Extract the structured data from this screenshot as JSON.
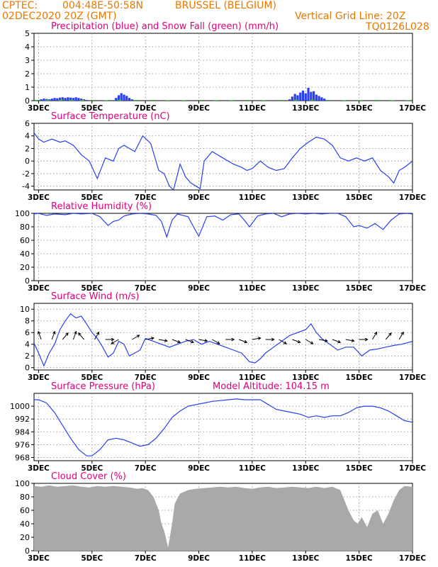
{
  "header": {
    "source": "CPTEC:",
    "coords": "004:48E-50:58N",
    "location": "BRUSSEL (BELGIUM)",
    "init": "02DEC2020 20Z (GMT)",
    "grid_note": "Vertical Grid Line: 20Z",
    "code": "TQ0126L028"
  },
  "colors": {
    "header_text": "#e87800",
    "panel_title": "#e0007a",
    "line": "#2a3ff0",
    "snow": "#22c322",
    "cloud_fill": "#a9a9a9",
    "grid": "#888888"
  },
  "x_axis": {
    "tick_labels": [
      "3DEC",
      "5DEC",
      "7DEC",
      "9DEC",
      "11DEC",
      "13DEC",
      "15DEC",
      "17DEC"
    ],
    "range_days": [
      2.83,
      17.0
    ]
  },
  "chart_data": [
    {
      "id": "precip",
      "type": "bar",
      "title": "Precipitation (blue) and Snow Fall (green) (mm/h)",
      "ylim": [
        0,
        5
      ],
      "yticks": [
        "0",
        "1",
        "2",
        "3",
        "4",
        "5"
      ],
      "series": [
        {
          "name": "Precipitation",
          "x": [
            3.0,
            3.1,
            3.2,
            3.3,
            3.4,
            3.5,
            3.6,
            3.7,
            3.8,
            3.9,
            4.0,
            4.1,
            4.2,
            4.3,
            4.4,
            4.5,
            4.6,
            4.7,
            4.8,
            5.9,
            6.0,
            6.1,
            6.2,
            6.3,
            6.4,
            6.5,
            12.4,
            12.5,
            12.6,
            12.7,
            12.8,
            12.9,
            13.0,
            13.1,
            13.2,
            13.3,
            13.4,
            13.5,
            13.6,
            13.7,
            13.8
          ],
          "values": [
            0.05,
            0.1,
            0.15,
            0.12,
            0.1,
            0.15,
            0.2,
            0.18,
            0.22,
            0.25,
            0.2,
            0.25,
            0.22,
            0.2,
            0.25,
            0.2,
            0.15,
            0.1,
            0.05,
            0.2,
            0.4,
            0.55,
            0.45,
            0.35,
            0.2,
            0.1,
            0.1,
            0.3,
            0.5,
            0.4,
            0.6,
            0.75,
            0.55,
            0.95,
            0.65,
            0.7,
            0.45,
            0.35,
            0.25,
            0.15,
            0.05
          ]
        },
        {
          "name": "Snow Fall",
          "x": [
            2.9,
            3.3,
            3.8,
            4.2,
            4.6,
            5.0,
            5.5,
            6.0,
            6.6,
            7.2,
            7.8,
            8.4,
            9.0,
            9.6,
            10.2,
            10.8,
            11.4,
            12.0,
            12.6,
            13.2,
            13.8,
            14.4,
            15.0,
            15.6,
            16.2,
            16.8
          ],
          "values": [
            0.05,
            0.05,
            0.06,
            0.06,
            0.05,
            0.05,
            0.04,
            0.06,
            0.05,
            0.05,
            0.04,
            0.04,
            0.05,
            0.04,
            0.04,
            0.05,
            0.04,
            0.05,
            0.06,
            0.05,
            0.05,
            0.04,
            0.04,
            0.05,
            0.04,
            0.04
          ]
        }
      ]
    },
    {
      "id": "temp",
      "type": "line",
      "title": "Surface Temperature (nC)",
      "ylim": [
        -4.6,
        6
      ],
      "yticks": [
        "-4",
        "-2",
        "0",
        "2",
        "4",
        "6"
      ],
      "x": [
        2.83,
        3.0,
        3.2,
        3.5,
        3.8,
        4.0,
        4.3,
        4.6,
        4.9,
        5.2,
        5.5,
        5.8,
        6.0,
        6.2,
        6.6,
        6.9,
        7.2,
        7.5,
        7.7,
        7.9,
        8.05,
        8.15,
        8.3,
        8.5,
        8.7,
        8.9,
        9.05,
        9.2,
        9.5,
        9.9,
        10.3,
        10.6,
        10.8,
        11.0,
        11.3,
        11.6,
        11.9,
        12.2,
        12.5,
        12.8,
        13.1,
        13.4,
        13.7,
        14.0,
        14.3,
        14.6,
        14.9,
        15.2,
        15.5,
        15.8,
        16.1,
        16.3,
        16.5,
        16.7,
        17.0
      ],
      "values": [
        4.5,
        3.5,
        3.0,
        3.5,
        3.0,
        3.2,
        2.5,
        1.0,
        0.0,
        -2.8,
        0.5,
        0.0,
        2.0,
        2.5,
        1.5,
        4.0,
        2.8,
        -1.5,
        -2.0,
        -4.0,
        -4.6,
        -3.0,
        -0.5,
        -2.5,
        -3.5,
        -4.0,
        -4.4,
        0.0,
        1.5,
        0.5,
        -0.5,
        -1.0,
        -1.5,
        -1.2,
        0.0,
        -1.0,
        -1.5,
        -1.2,
        0.5,
        2.0,
        3.0,
        3.8,
        3.5,
        2.5,
        0.5,
        0.0,
        0.5,
        0.0,
        0.5,
        -1.5,
        -2.5,
        -3.5,
        -1.5,
        -1.0,
        0.0
      ]
    },
    {
      "id": "rh",
      "type": "line",
      "title": "Relative Humidity (%)",
      "ylim": [
        0,
        100
      ],
      "yticks": [
        "0",
        "20",
        "40",
        "60",
        "80",
        "100"
      ],
      "x": [
        2.83,
        3.0,
        3.3,
        3.6,
        4.0,
        4.3,
        4.6,
        5.0,
        5.3,
        5.6,
        5.8,
        6.0,
        6.2,
        6.5,
        6.8,
        7.1,
        7.4,
        7.6,
        7.8,
        8.0,
        8.2,
        8.4,
        8.6,
        8.8,
        9.0,
        9.3,
        9.6,
        9.9,
        10.2,
        10.5,
        10.7,
        10.9,
        11.2,
        11.5,
        11.8,
        12.1,
        12.4,
        12.7,
        13.0,
        13.3,
        13.6,
        13.9,
        14.2,
        14.5,
        14.8,
        15.0,
        15.3,
        15.6,
        15.9,
        16.2,
        16.5,
        16.8,
        17.0
      ],
      "values": [
        99,
        100,
        97,
        99,
        98,
        100,
        99,
        100,
        95,
        82,
        88,
        90,
        96,
        99,
        100,
        99,
        97,
        88,
        65,
        90,
        99,
        97,
        95,
        80,
        66,
        95,
        96,
        90,
        98,
        99,
        90,
        80,
        96,
        99,
        100,
        95,
        99,
        100,
        99,
        100,
        99,
        100,
        100,
        95,
        80,
        82,
        78,
        85,
        76,
        90,
        99,
        100,
        99
      ]
    },
    {
      "id": "wind",
      "type": "line",
      "title": "Surface Wind (m/s)",
      "ylim": [
        -0.4,
        11
      ],
      "yticks": [
        "0",
        "2",
        "4",
        "6",
        "8",
        "10"
      ],
      "x": [
        2.83,
        3.0,
        3.2,
        3.4,
        3.6,
        3.8,
        4.0,
        4.2,
        4.4,
        4.6,
        4.8,
        5.0,
        5.2,
        5.4,
        5.6,
        5.8,
        6.0,
        6.2,
        6.4,
        6.6,
        6.8,
        7.0,
        7.3,
        7.6,
        7.9,
        8.2,
        8.5,
        8.8,
        9.1,
        9.4,
        9.7,
        10.0,
        10.3,
        10.6,
        10.9,
        11.1,
        11.3,
        11.5,
        11.8,
        12.1,
        12.4,
        12.7,
        13.0,
        13.2,
        13.4,
        13.6,
        13.9,
        14.2,
        14.5,
        14.8,
        15.1,
        15.4,
        15.7,
        16.0,
        16.3,
        16.6,
        17.0
      ],
      "values": [
        4.2,
        2.5,
        0.3,
        2.5,
        4.0,
        6.5,
        8.0,
        9.2,
        8.5,
        8.8,
        7.5,
        6.0,
        5.0,
        3.5,
        1.8,
        2.5,
        4.5,
        4.0,
        2.0,
        2.5,
        3.0,
        5.0,
        4.5,
        4.0,
        3.5,
        4.0,
        4.5,
        4.8,
        4.0,
        4.5,
        4.0,
        3.5,
        3.0,
        2.5,
        1.0,
        0.8,
        1.5,
        2.5,
        3.5,
        4.5,
        5.5,
        6.0,
        6.5,
        7.5,
        6.0,
        5.0,
        4.0,
        3.0,
        3.5,
        3.5,
        2.0,
        3.0,
        3.2,
        3.5,
        3.8,
        4.0,
        4.5
      ]
    },
    {
      "id": "pressure",
      "type": "line",
      "title": "Surface Pressure (hPa)",
      "subtitle": "Model Altitude: 104.15 m",
      "ylim": [
        966,
        1008
      ],
      "yticks": [
        "968",
        "976",
        "984",
        "992",
        "1000"
      ],
      "x": [
        2.83,
        3.0,
        3.3,
        3.6,
        3.9,
        4.2,
        4.5,
        4.8,
        5.0,
        5.3,
        5.6,
        5.9,
        6.2,
        6.5,
        6.8,
        7.1,
        7.4,
        7.7,
        8.0,
        8.3,
        8.6,
        8.9,
        9.2,
        9.5,
        9.8,
        10.1,
        10.4,
        10.7,
        11.0,
        11.3,
        11.6,
        11.9,
        12.2,
        12.5,
        12.8,
        13.1,
        13.4,
        13.7,
        14.0,
        14.3,
        14.6,
        14.9,
        15.2,
        15.5,
        15.8,
        16.1,
        16.4,
        16.7,
        17.0
      ],
      "values": [
        1004,
        1004,
        1002,
        996,
        988,
        980,
        973,
        969,
        969,
        973,
        979,
        980,
        979,
        977,
        975,
        976,
        980,
        986,
        993,
        997,
        1000,
        1001,
        1002,
        1003,
        1003.5,
        1004,
        1004.5,
        1004,
        1004,
        1004,
        1001,
        998,
        997,
        996,
        995,
        993,
        994,
        993,
        994,
        994,
        996,
        999,
        1000,
        1000,
        999,
        997,
        994,
        991,
        990
      ]
    },
    {
      "id": "cloud",
      "type": "area",
      "title": "Cloud Cover (%)",
      "ylim": [
        0,
        100
      ],
      "yticks": [
        "0",
        "20",
        "40",
        "60",
        "80",
        "100"
      ],
      "x": [
        2.83,
        3.1,
        3.4,
        3.7,
        4.0,
        4.3,
        4.6,
        4.9,
        5.2,
        5.5,
        5.8,
        6.1,
        6.4,
        6.7,
        6.9,
        7.1,
        7.3,
        7.5,
        7.6,
        7.7,
        7.85,
        8.0,
        8.1,
        8.3,
        8.6,
        8.9,
        9.2,
        9.5,
        9.8,
        10.1,
        10.4,
        10.7,
        11.0,
        11.3,
        11.6,
        11.9,
        12.2,
        12.5,
        12.8,
        13.1,
        13.4,
        13.7,
        14.0,
        14.3,
        14.6,
        14.8,
        14.95,
        15.1,
        15.3,
        15.5,
        15.7,
        15.9,
        16.1,
        16.3,
        16.5,
        16.7,
        17.0
      ],
      "values": [
        96,
        95,
        97,
        95,
        96,
        97,
        95,
        94,
        96,
        95,
        96,
        95,
        94,
        92,
        93,
        90,
        80,
        60,
        40,
        30,
        5,
        40,
        70,
        85,
        90,
        92,
        93,
        94,
        95,
        94,
        95,
        93,
        92,
        94,
        95,
        93,
        94,
        95,
        94,
        93,
        95,
        93,
        95,
        90,
        60,
        45,
        40,
        50,
        35,
        55,
        60,
        40,
        55,
        75,
        90,
        96,
        95
      ]
    }
  ],
  "wind_barbs": {
    "x": [
      3.1,
      3.5,
      3.9,
      4.3,
      4.7,
      5.1,
      5.5,
      6.0,
      6.5,
      7.0,
      7.5,
      8.0,
      8.5,
      9.0,
      9.5,
      10.0,
      10.5,
      11.0,
      11.5,
      12.0,
      12.5,
      13.0,
      13.5,
      14.0,
      14.5,
      15.0,
      15.5,
      16.0,
      16.5,
      17.0
    ],
    "direction_deg": [
      340,
      20,
      40,
      20,
      320,
      30,
      90,
      240,
      60,
      80,
      100,
      110,
      110,
      100,
      120,
      90,
      110,
      80,
      90,
      120,
      110,
      120,
      100,
      110,
      100,
      90,
      30,
      40,
      30,
      50
    ]
  }
}
